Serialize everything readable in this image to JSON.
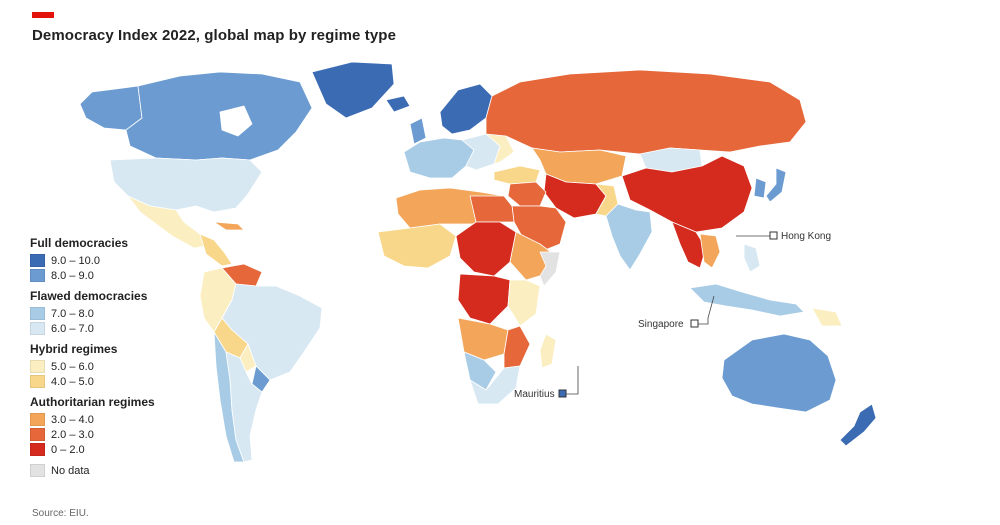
{
  "title": "Democracy Index 2022, global map by regime type",
  "source": "Source: EIU.",
  "legend": {
    "groups": [
      {
        "heading": "Full democracies",
        "items": [
          {
            "label": "9.0 – 10.0",
            "color": "#3b6bb3"
          },
          {
            "label": "8.0 – 9.0",
            "color": "#6b9bd0"
          }
        ]
      },
      {
        "heading": "Flawed democracies",
        "items": [
          {
            "label": "7.0 – 8.0",
            "color": "#a9cce6"
          },
          {
            "label": "6.0 – 7.0",
            "color": "#d7e8f3"
          }
        ]
      },
      {
        "heading": "Hybrid regimes",
        "items": [
          {
            "label": "5.0 – 6.0",
            "color": "#fbeec0"
          },
          {
            "label": "4.0 – 5.0",
            "color": "#f8d78a"
          }
        ]
      },
      {
        "heading": "Authoritarian regimes",
        "items": [
          {
            "label": "3.0 – 4.0",
            "color": "#f3a55a"
          },
          {
            "label": "2.0 – 3.0",
            "color": "#e5673a"
          },
          {
            "label": "0 – 2.0",
            "color": "#d42b1e"
          }
        ]
      }
    ],
    "nodata": {
      "label": "No data",
      "color": "#e2e2e2"
    }
  },
  "callouts": {
    "hong_kong": "Hong Kong",
    "singapore": "Singapore",
    "mauritius": "Mauritius"
  },
  "palette": {
    "full_high": "#3b6bb3",
    "full": "#6b9bd0",
    "flawed_high": "#a9cce6",
    "flawed": "#d7e8f3",
    "hybrid_high": "#fbeec0",
    "hybrid": "#f8d78a",
    "auth_high": "#f3a55a",
    "auth": "#e5673a",
    "auth_low": "#d42b1e",
    "nodata": "#e2e2e2",
    "brand": "#e3120b"
  }
}
